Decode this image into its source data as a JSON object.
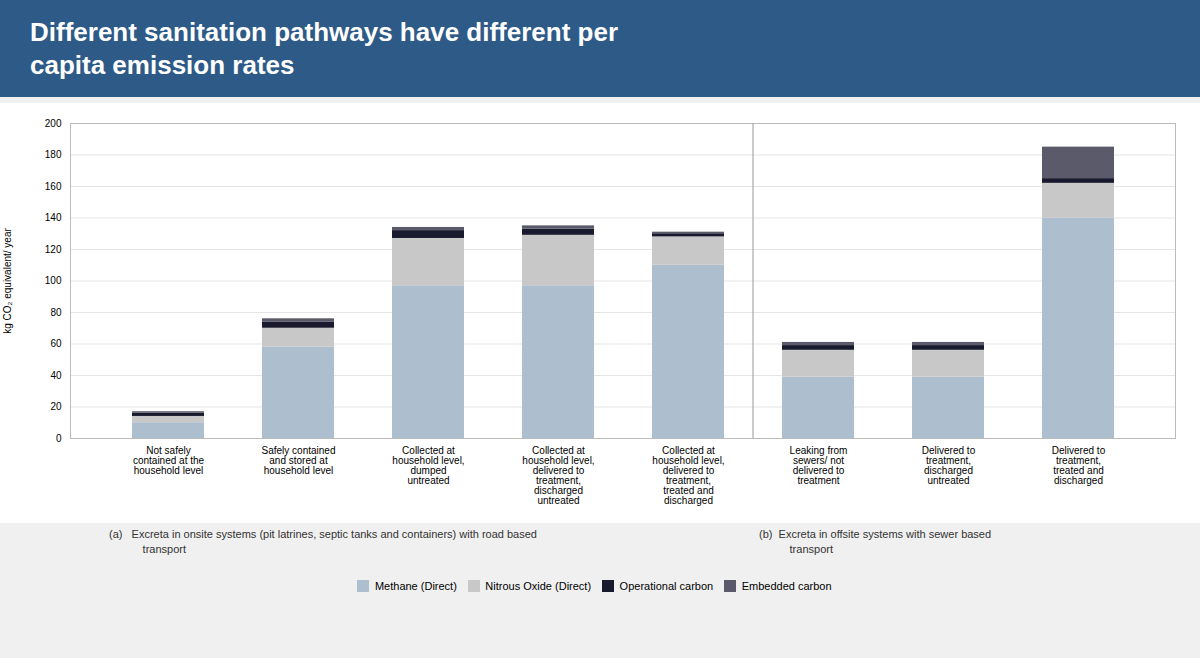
{
  "chart_data": {
    "type": "bar",
    "stacked": true,
    "title": "Different sanitation pathways have different per\ncapita emission rates",
    "ylabel": "kg CO₂ equivalent/ year",
    "categories": [
      "Not safely\ncontained at the\nhousehold level",
      "Safely contained\nand stored at\nhousehold level",
      "Collected at\nhousehold level,\ndumped\nuntreated",
      "Collected at\nhousehold level,\ndelivered to\ntreatment,\ndischarged\nuntreated",
      "Collected at\nhousehold level,\ndelivered to\ntreatment,\ntreated and\ndischarged",
      "Leaking from\nsewers/ not\ndelivered to\ntreatment",
      "Delivered to\ntreatment,\ndischarged\nuntreated",
      "Delivered to\ntreatment,\ntreated and\ndischarged"
    ],
    "series": [
      {
        "name": "Methane (Direct)",
        "color": "#adbfcf",
        "values": [
          10,
          58,
          97,
          97,
          110,
          39,
          39,
          140
        ]
      },
      {
        "name": "Nitrous Oxide (Direct)",
        "color": "#c8c8c8",
        "values": [
          4,
          12,
          30,
          32,
          18,
          17,
          17,
          22
        ]
      },
      {
        "name": "Operational carbon",
        "color": "#1a1a2e",
        "values": [
          2,
          4,
          5,
          4,
          2,
          3,
          3,
          3
        ]
      },
      {
        "name": "Embedded carbon",
        "color": "#5a5a6a",
        "values": [
          1,
          2,
          2,
          2,
          1,
          2,
          2,
          20
        ]
      }
    ],
    "ylim": [
      0,
      200
    ],
    "yticks": [
      0,
      20,
      40,
      60,
      80,
      100,
      120,
      140,
      160,
      180,
      200
    ],
    "grid": true,
    "legend": "bottom",
    "annotations": [
      {
        "text": "(a)   Excreta in onsite systems (pit latrines, septic tanks and containers) with road based\n           transport",
        "category": "Not safely\ncontained at the\nhousehold level"
      },
      {
        "text": "(b)  Excreta in offsite systems with sewer based\n          transport",
        "category": "Leaking from\nsewers/ not\ndelivered to\ntreatment"
      }
    ]
  }
}
